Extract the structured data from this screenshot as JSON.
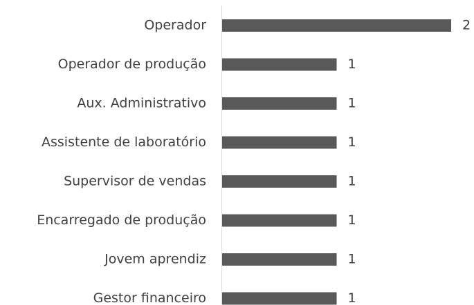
{
  "chart_data": {
    "type": "bar",
    "orientation": "horizontal",
    "categories": [
      "Operador",
      "Operador de produção",
      "Aux. Administrativo",
      "Assistente de laboratório",
      "Supervisor de vendas",
      "Encarregado de produção",
      "Jovem aprendiz",
      "Gestor financeiro"
    ],
    "values": [
      2,
      1,
      1,
      1,
      1,
      1,
      1,
      1
    ],
    "color": "#595959"
  }
}
